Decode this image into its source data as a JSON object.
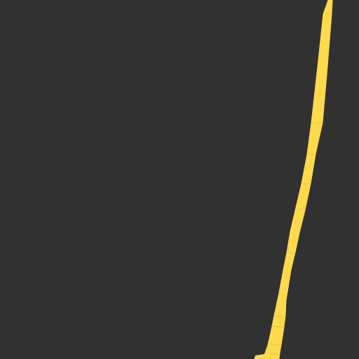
{
  "map": {
    "background_color": "#313131",
    "road_color": "#fdd94c",
    "road_seam_color": "#d9b93c",
    "features": [
      {
        "kind": "road"
      }
    ]
  }
}
